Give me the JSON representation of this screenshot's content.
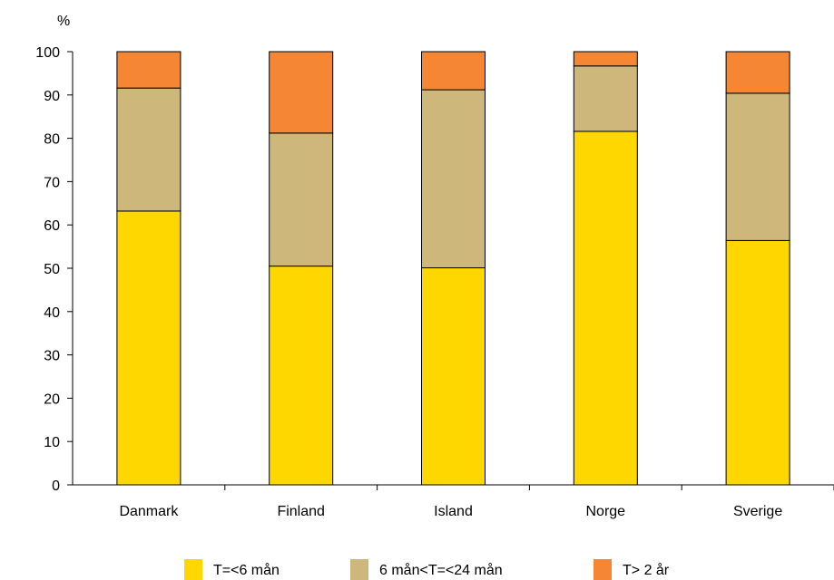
{
  "chart_data": {
    "type": "bar",
    "stacked": true,
    "ylabel": "%",
    "ylim": [
      0,
      100
    ],
    "yticks": [
      0,
      10,
      20,
      30,
      40,
      50,
      60,
      70,
      80,
      90,
      100
    ],
    "grid": false,
    "legend_position": "bottom",
    "categories": [
      "Danmark",
      "Finland",
      "Island",
      "Norge",
      "Sverige"
    ],
    "series": [
      {
        "name": "T=<6 mån",
        "color": "#FFD700",
        "values": [
          63.2,
          50.5,
          50.1,
          81.6,
          56.4
        ]
      },
      {
        "name": "6 mån<T=<24 mån",
        "color": "#CDB77A",
        "values": [
          28.4,
          30.7,
          41.1,
          15.1,
          34.0
        ]
      },
      {
        "name": "T> 2 år",
        "color": "#F58634",
        "values": [
          8.4,
          18.8,
          8.8,
          3.3,
          9.6
        ]
      }
    ]
  }
}
